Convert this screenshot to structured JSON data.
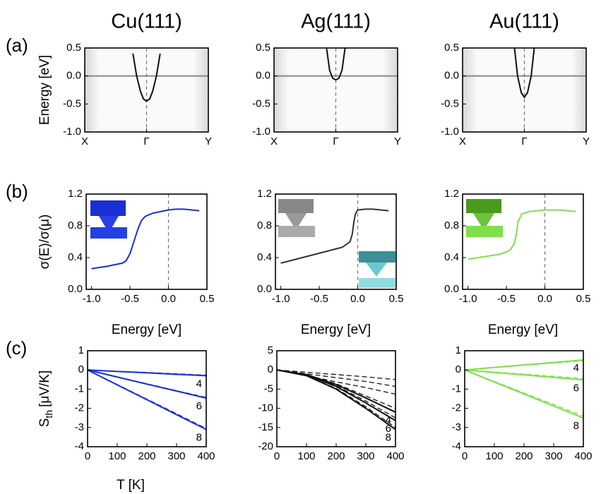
{
  "chart_data": [
    {
      "type": "band",
      "title": "Cu(111)",
      "panel_label": "(a)",
      "y_label": "Energy [eV]",
      "xlim": [
        -1,
        1
      ],
      "xticks": [
        {
          "value": -1,
          "label": "X"
        },
        {
          "value": 0,
          "label": "Γ"
        },
        {
          "value": 1,
          "label": "Y"
        }
      ],
      "ylim": [
        -1,
        0.5
      ],
      "yticks": [
        {
          "value": -1,
          "label": "-1.0"
        },
        -0.5,
        {
          "value": 0,
          "label": "0.0"
        },
        0.5
      ],
      "hline": 0,
      "vline": 0,
      "series": [
        {
          "color": "#111111",
          "x": [
            -0.22,
            -0.16,
            -0.1,
            -0.05,
            0,
            0.05,
            0.1,
            0.16,
            0.22
          ],
          "values": [
            0.4,
            0,
            -0.27,
            -0.41,
            -0.45,
            -0.41,
            -0.27,
            0,
            0.4
          ]
        }
      ]
    },
    {
      "type": "band",
      "title": "Ag(111)",
      "xlim": [
        -1,
        1
      ],
      "xticks": [
        {
          "value": -1,
          "label": "X"
        },
        {
          "value": 0,
          "label": "Γ"
        },
        {
          "value": 1,
          "label": "Y"
        }
      ],
      "ylim": [
        -1,
        0.5
      ],
      "yticks": [
        {
          "value": -1,
          "label": "-1.0"
        },
        -0.5,
        {
          "value": 0,
          "label": "0.0"
        },
        0.5
      ],
      "hline": 0,
      "vline": 0,
      "series": [
        {
          "color": "#111111",
          "x": [
            -0.15,
            -0.1,
            -0.05,
            0,
            0.05,
            0.1,
            0.15
          ],
          "values": [
            0.5,
            0.1,
            -0.04,
            -0.07,
            -0.04,
            0.1,
            0.5
          ]
        }
      ]
    },
    {
      "type": "band",
      "title": "Au(111)",
      "xlim": [
        -1,
        1
      ],
      "xticks": [
        {
          "value": -1,
          "label": "X"
        },
        {
          "value": 0,
          "label": "Γ"
        },
        {
          "value": 1,
          "label": "Y"
        }
      ],
      "ylim": [
        -1,
        0.5
      ],
      "yticks": [
        {
          "value": -1,
          "label": "-1.0"
        },
        -0.5,
        {
          "value": 0,
          "label": "0.0"
        },
        0.5
      ],
      "hline": 0,
      "vline": 0,
      "series": [
        {
          "color": "#111111",
          "x": [
            -0.16,
            -0.11,
            -0.05,
            0,
            0.05,
            0.11,
            0.16
          ],
          "values": [
            0.5,
            0,
            -0.3,
            -0.38,
            -0.3,
            0,
            0.5
          ]
        }
      ]
    },
    {
      "type": "line",
      "panel_label": "(b)",
      "y_label": "σ(E)/σ(μ)",
      "x_label": "Energy [eV]",
      "xlim": [
        -1.07,
        0.5
      ],
      "xticks": [
        {
          "value": -1,
          "label": "-1.0"
        },
        -0.5,
        {
          "value": 0,
          "label": "0.0"
        },
        0.5
      ],
      "ylim": [
        0,
        1.2
      ],
      "yticks": [
        {
          "value": 0,
          "label": "0.0"
        },
        0.4,
        0.8,
        1.2
      ],
      "vline": 0,
      "series": [
        {
          "color": "#1a2fd6",
          "x": [
            -1,
            -0.8,
            -0.6,
            -0.55,
            -0.5,
            -0.45,
            -0.4,
            -0.35,
            -0.3,
            -0.2,
            -0.1,
            0,
            0.1,
            0.2,
            0.3,
            0.4
          ],
          "values": [
            0.26,
            0.29,
            0.33,
            0.36,
            0.45,
            0.6,
            0.75,
            0.87,
            0.92,
            0.96,
            0.98,
            1,
            1.01,
            1.01,
            1,
            0.99
          ]
        }
      ]
    },
    {
      "type": "line",
      "x_label": "Energy [eV]",
      "xlim": [
        -1.07,
        0.5
      ],
      "xticks": [
        {
          "value": -1,
          "label": "-1.0"
        },
        -0.5,
        {
          "value": 0,
          "label": "0.0"
        },
        0.5
      ],
      "ylim": [
        0,
        1.2
      ],
      "yticks": [
        {
          "value": 0,
          "label": "0.0"
        },
        0.4,
        0.8,
        1.2
      ],
      "vline": 0,
      "series": [
        {
          "color": "#333333",
          "x": [
            -1,
            -0.8,
            -0.6,
            -0.4,
            -0.2,
            -0.1,
            -0.07,
            -0.05,
            -0.03,
            0,
            0.1,
            0.2,
            0.3,
            0.4
          ],
          "values": [
            0.33,
            0.38,
            0.43,
            0.48,
            0.53,
            0.6,
            0.7,
            0.85,
            0.95,
            1,
            1.01,
            1.01,
            1,
            0.99
          ]
        }
      ]
    },
    {
      "type": "line",
      "x_label": "Energy [eV]",
      "xlim": [
        -1.07,
        0.5
      ],
      "xticks": [
        {
          "value": -1,
          "label": "-1.0"
        },
        -0.5,
        {
          "value": 0,
          "label": "0.0"
        },
        0.5
      ],
      "ylim": [
        0,
        1.2
      ],
      "yticks": [
        {
          "value": 0,
          "label": "0.0"
        },
        0.4,
        0.8,
        1.2
      ],
      "vline": 0,
      "series": [
        {
          "color": "#7ee04a",
          "x": [
            -1,
            -0.8,
            -0.6,
            -0.5,
            -0.45,
            -0.4,
            -0.37,
            -0.35,
            -0.3,
            -0.2,
            0,
            0.2,
            0.4
          ],
          "values": [
            0.38,
            0.41,
            0.44,
            0.47,
            0.5,
            0.57,
            0.7,
            0.85,
            0.95,
            0.98,
            1,
            1,
            0.98
          ]
        }
      ]
    },
    {
      "type": "line",
      "panel_label": "(c)",
      "y_label": "S",
      "y_label_sub": "th",
      "y_label_unit": "[μV/K]",
      "x_label": "T [K]",
      "x": [
        0,
        100,
        200,
        300,
        400
      ],
      "xlim": [
        0,
        400
      ],
      "xticks": [
        0,
        100,
        200,
        300,
        400
      ],
      "ylim": [
        -4,
        1
      ],
      "yticks": [
        -4,
        -3,
        -2,
        -1,
        0,
        1
      ],
      "series": [
        {
          "name": "4",
          "color": "#1a2fd6",
          "dash": false,
          "values": [
            0,
            -0.08,
            -0.15,
            -0.23,
            -0.3
          ]
        },
        {
          "color": "#1a2fd6",
          "dash": true,
          "values": [
            0,
            -0.07,
            -0.13,
            -0.2,
            -0.27
          ]
        },
        {
          "name": "6",
          "color": "#1a2fd6",
          "dash": false,
          "values": [
            0,
            -0.37,
            -0.74,
            -1.1,
            -1.47
          ]
        },
        {
          "color": "#1a2fd6",
          "dash": true,
          "values": [
            0,
            -0.36,
            -0.72,
            -1.08,
            -1.43
          ]
        },
        {
          "name": "8",
          "color": "#1a2fd6",
          "dash": false,
          "values": [
            0,
            -0.78,
            -1.55,
            -2.33,
            -3.1
          ]
        },
        {
          "color": "#1a2fd6",
          "dash": true,
          "values": [
            0,
            -0.76,
            -1.52,
            -2.28,
            -3.05
          ]
        }
      ]
    },
    {
      "type": "line",
      "x": [
        0,
        100,
        200,
        300,
        400
      ],
      "xlim": [
        0,
        400
      ],
      "xticks": [
        0,
        100,
        200,
        300,
        400
      ],
      "ylim": [
        -20,
        5
      ],
      "yticks": [
        -20,
        -15,
        -10,
        -5,
        0,
        5
      ],
      "series": [
        {
          "name": "4",
          "color": "#111111",
          "dash": false,
          "values": [
            0,
            -1.2,
            -3.8,
            -7.3,
            -11
          ]
        },
        {
          "name": "6",
          "color": "#111111",
          "dash": false,
          "values": [
            0,
            -1.3,
            -4.3,
            -8.6,
            -13.2
          ]
        },
        {
          "name": "8",
          "color": "#111111",
          "dash": false,
          "values": [
            0,
            -1.5,
            -5,
            -10,
            -15.5
          ]
        },
        {
          "color": "#111111",
          "dash": true,
          "values": [
            0,
            -0.6,
            -1.2,
            -1.8,
            -2.5
          ]
        },
        {
          "color": "#111111",
          "dash": true,
          "values": [
            0,
            -1,
            -2,
            -3,
            -4.3
          ]
        },
        {
          "color": "#111111",
          "dash": true,
          "values": [
            0,
            -1.5,
            -3.1,
            -4.6,
            -6.3
          ]
        },
        {
          "color": "#111111",
          "dash": true,
          "values": [
            0,
            -1.2,
            -3.6,
            -6.8,
            -10
          ]
        },
        {
          "color": "#111111",
          "dash": true,
          "values": [
            0,
            -1.3,
            -4.1,
            -8.1,
            -12.5
          ]
        },
        {
          "color": "#111111",
          "dash": true,
          "values": [
            0,
            -1.5,
            -4.8,
            -9.6,
            -15
          ]
        }
      ]
    },
    {
      "type": "line",
      "x": [
        0,
        100,
        200,
        300,
        400
      ],
      "xlim": [
        0,
        400
      ],
      "xticks": [
        0,
        100,
        200,
        300,
        400
      ],
      "ylim": [
        -4,
        1
      ],
      "yticks": [
        -4,
        -3,
        -2,
        -1,
        0,
        1
      ],
      "series": [
        {
          "name": "4",
          "color": "#7ee04a",
          "dash": false,
          "values": [
            0,
            0.13,
            0.26,
            0.39,
            0.52
          ]
        },
        {
          "color": "#7ee04a",
          "dash": true,
          "values": [
            0,
            0.12,
            0.24,
            0.36,
            0.48
          ]
        },
        {
          "name": "6",
          "color": "#7ee04a",
          "dash": false,
          "values": [
            0,
            -0.13,
            -0.26,
            -0.39,
            -0.52
          ]
        },
        {
          "color": "#7ee04a",
          "dash": true,
          "values": [
            0,
            -0.11,
            -0.22,
            -0.33,
            -0.45
          ]
        },
        {
          "name": "8",
          "color": "#7ee04a",
          "dash": false,
          "values": [
            0,
            -0.63,
            -1.25,
            -1.88,
            -2.5
          ]
        },
        {
          "color": "#7ee04a",
          "dash": true,
          "values": [
            0,
            -0.6,
            -1.2,
            -1.8,
            -2.4
          ]
        }
      ]
    }
  ]
}
